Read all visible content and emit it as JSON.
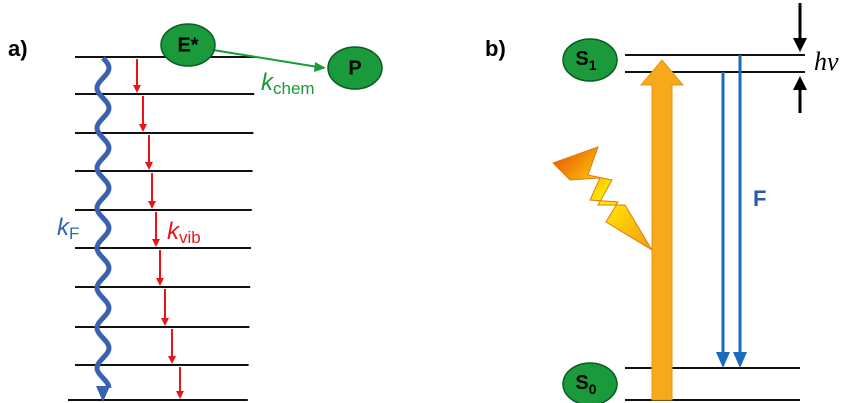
{
  "panel_a": {
    "label": "a)",
    "excited_state": "E*",
    "product": "P",
    "k_chem": {
      "symbol": "k",
      "subscript": "chem"
    },
    "k_F": {
      "symbol": "k",
      "subscript": "F"
    },
    "k_vib": {
      "symbol": "k",
      "subscript": "vib"
    }
  },
  "panel_b": {
    "label": "b)",
    "S1": {
      "symbol": "S",
      "subscript": "1"
    },
    "S0": {
      "symbol": "S",
      "subscript": "0"
    },
    "fluorescence": "F",
    "photon": "hν"
  }
}
